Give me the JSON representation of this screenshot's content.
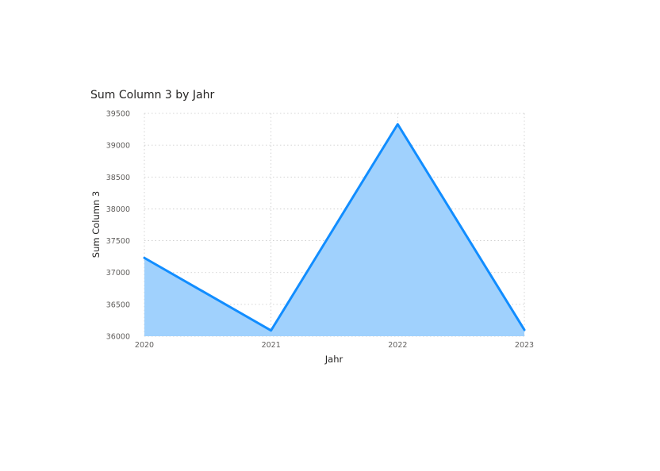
{
  "chart_data": {
    "type": "area",
    "title": "Sum Column 3 by Jahr",
    "xlabel": "Jahr",
    "ylabel": "Sum Column 3",
    "categories": [
      "2020",
      "2021",
      "2022",
      "2023"
    ],
    "series": [
      {
        "values": [
          37230,
          36090,
          39330,
          36100
        ]
      }
    ],
    "ylim": [
      36000,
      39500
    ],
    "yticks": [
      "36000",
      "36500",
      "37000",
      "37500",
      "38000",
      "38500",
      "39000",
      "39500"
    ],
    "grid": true,
    "colors": {
      "line": "#118DFF",
      "fill": "#A0D1FD"
    }
  }
}
